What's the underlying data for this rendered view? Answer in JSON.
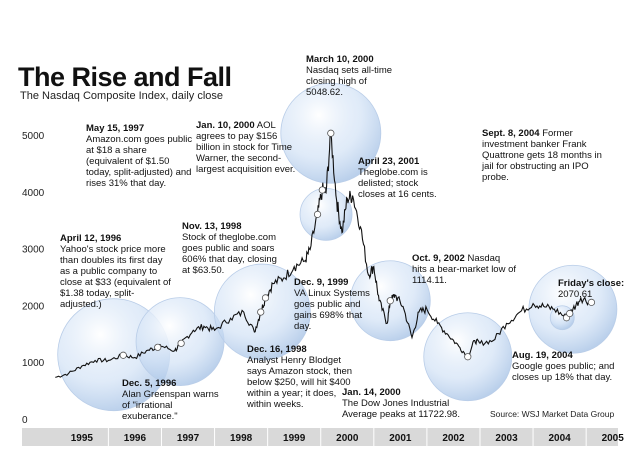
{
  "title": "The Rise and Fall",
  "subtitle": "The Nasdaq Composite Index, daily close",
  "source": "Source: WSJ Market Data Group",
  "colors": {
    "line": "#111111",
    "bubble": "#cfe0f5",
    "axis_band": "#d9d9d9"
  },
  "annotations": [
    {
      "date": "May 15, 1997",
      "text": "Amazon.com goes public at $18 a share (equivalent of $1.50 today, split-adjusted) and rises 31% that day."
    },
    {
      "date": "Jan. 10, 2000",
      "text": "AOL agrees to pay $156 billion in stock for Time Warner, the second-largest acquisition ever."
    },
    {
      "date": "March 10, 2000",
      "text": "Nasdaq sets all-time closing high of 5048.62."
    },
    {
      "date": "April 23, 2001",
      "text": "Theglobe.com is delisted; stock closes at 16 cents."
    },
    {
      "date": "Sept. 8, 2004",
      "text": "Former investment banker Frank Quattrone gets 18 months in jail for obstructing an IPO probe."
    },
    {
      "date": "April 12, 1996",
      "text": "Yahoo's stock price more than doubles its first day as a public company to close at $33 (equivalent of $1.38 today, split-adjusted.)"
    },
    {
      "date": "Nov. 13, 1998",
      "text": "Stock of theglobe.com goes public and soars 606% that day, closing at $63.50."
    },
    {
      "date": "Dec. 9, 1999",
      "text": "VA Linux Systems goes public and gains 698% that day."
    },
    {
      "date": "Oct. 9, 2002",
      "text": "Nasdaq hits a bear-market low of 1114.11."
    },
    {
      "date": "Friday's close:",
      "text": "2070.61"
    },
    {
      "date": "Dec. 5, 1996",
      "text": "Alan Greenspan warns of \"irrational exuberance.\""
    },
    {
      "date": "Dec. 16, 1998",
      "text": "Analyst Henry Blodget says Amazon stock, then below $250, will hit $400 within a year; it does, within weeks."
    },
    {
      "date": "Jan. 14, 2000",
      "text": "The Dow Jones Industrial Average peaks at 11722.98."
    },
    {
      "date": "Aug. 19, 2004",
      "text": "Google goes public; and closes up 18% that day."
    }
  ],
  "chart_data": {
    "type": "line",
    "title": "The Rise and Fall",
    "subtitle": "The Nasdaq Composite Index, daily close",
    "xlabel": "",
    "ylabel": "",
    "x_ticks": [
      "1995",
      "1996",
      "1997",
      "1998",
      "1999",
      "2000",
      "2001",
      "2002",
      "2003",
      "2004",
      "2005"
    ],
    "y_ticks": [
      0,
      1000,
      2000,
      3000,
      4000,
      5000
    ],
    "ylim": [
      0,
      5300
    ],
    "xlim": [
      1994.9,
      2005.6
    ],
    "grid": false,
    "legend": "none",
    "series": [
      {
        "x": [
          1995.0,
          1995.25,
          1995.5,
          1995.75,
          1996.0,
          1996.28,
          1996.5,
          1996.75,
          1996.93,
          1997.0,
          1997.25,
          1997.37,
          1997.6,
          1997.8,
          1998.0,
          1998.3,
          1998.55,
          1998.75,
          1998.87,
          1998.96,
          1999.1,
          1999.3,
          1999.5,
          1999.7,
          1999.8,
          1999.94,
          2000.03,
          2000.1,
          2000.19,
          2000.3,
          2000.4,
          2000.5,
          2000.6,
          2000.75,
          2000.9,
          2001.0,
          2001.1,
          2001.25,
          2001.31,
          2001.4,
          2001.55,
          2001.72,
          2001.85,
          2002.0,
          2002.2,
          2002.4,
          2002.6,
          2002.77,
          2002.9,
          2003.0,
          2003.25,
          2003.5,
          2003.75,
          2004.0,
          2004.2,
          2004.4,
          2004.63,
          2004.75,
          2004.9,
          2005.1
        ],
        "y": [
          750,
          820,
          950,
          1050,
          1050,
          1140,
          1100,
          1230,
          1280,
          1300,
          1220,
          1350,
          1580,
          1650,
          1580,
          1790,
          1900,
          1550,
          1900,
          2150,
          2400,
          2500,
          2700,
          2800,
          3000,
          3620,
          4050,
          4000,
          5048.62,
          3860,
          3300,
          3900,
          3950,
          3400,
          2550,
          2700,
          2100,
          1700,
          2100,
          2200,
          2000,
          1450,
          1900,
          1950,
          1700,
          1500,
          1300,
          1114.11,
          1400,
          1350,
          1400,
          1700,
          1900,
          2050,
          2000,
          1950,
          1800,
          1950,
          2150,
          2070.61
        ]
      }
    ]
  }
}
